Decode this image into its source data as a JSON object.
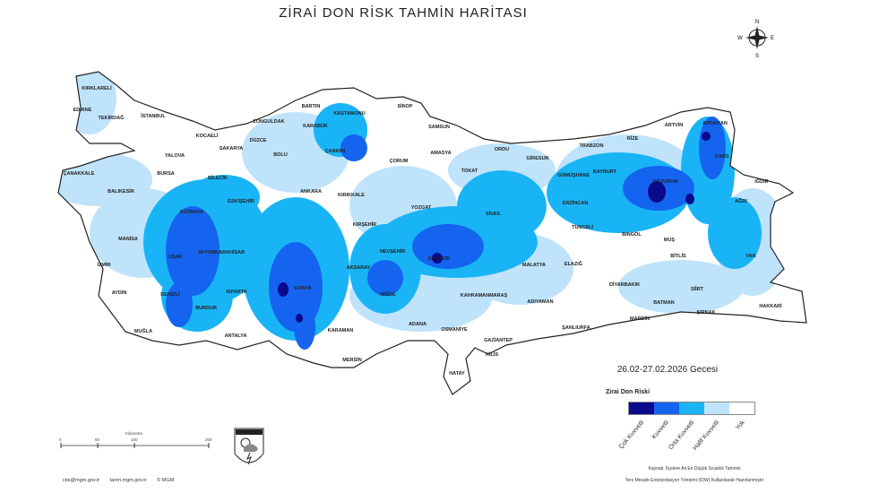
{
  "title": "ZİRAİ DON RİSK TAHMİN HARİTASI",
  "date_label": "26.02-27.02.2026 Gecesi",
  "legend": {
    "title": "Zirai Don Riski",
    "items": [
      {
        "label": "Çok Kuvvetli",
        "color": "#0a0a8c"
      },
      {
        "label": "Kuvvetli",
        "color": "#1464f0"
      },
      {
        "label": "Orta Kuvvetli",
        "color": "#19b4f5"
      },
      {
        "label": "Hafif Kuvvetli",
        "color": "#bfe3fa"
      },
      {
        "label": "Yok",
        "color": "#ffffff"
      }
    ]
  },
  "source_lines": [
    "Kaynak: İlçelere Ait En Düşük Sıcaklık Tahmini",
    "Ters Mesafe Enterpolasyon Yöntemi (IDW) Kullanılarak Hazırlanmıştır"
  ],
  "footer": {
    "email": "cbs@mgm.gov.tr",
    "web": "tarim.mgm.gov.tr",
    "copyright": "© MGM"
  },
  "scale": {
    "unit": "Kilometre",
    "ticks": [
      "0",
      "50",
      "100",
      "200"
    ]
  },
  "compass": {
    "n": "N",
    "s": "S",
    "e": "E",
    "w": "W",
    "icon": "compass-rose-icon"
  },
  "logo": {
    "text": "METEOROLOJİ",
    "icon": "meteoroloji-logo-icon"
  },
  "provinces": [
    "KIRKLARELİ",
    "EDİRNE",
    "TEKİRDAĞ",
    "İSTANBUL",
    "KOCAELİ",
    "ZONGULDAK",
    "BARTIN",
    "KASTAMONU",
    "SİNOP",
    "SAMSUN",
    "DÜZCE",
    "SAKARYA",
    "BOLU",
    "KARABÜK",
    "ÇANKIRI",
    "ÇORUM",
    "AMASYA",
    "TOKAT",
    "ORDU",
    "GİRESUN",
    "TRABZON",
    "RİZE",
    "ARTVİN",
    "ARDAHAN",
    "KARS",
    "IĞDIR",
    "BAYBURT",
    "GÜMÜŞHANE",
    "ERZURUM",
    "ERZİNCAN",
    "AĞRI",
    "TUNCELİ",
    "BİNGÖL",
    "MUŞ",
    "BİTLİS",
    "VAN",
    "ÇANAKKALE",
    "BALIKESİR",
    "BURSA",
    "BİLECİK",
    "ESKİŞEHİR",
    "ANKARA",
    "KIRIKKALE",
    "KIRŞEHİR",
    "YOZGAT",
    "SİVAS",
    "KÜTAHYA",
    "MANİSA",
    "UŞAK",
    "AFYONKARAHİSAR",
    "İZMİR",
    "AYDIN",
    "DENİZLİ",
    "BURDUR",
    "ISPARTA",
    "KONYA",
    "AKSARAY",
    "NEVŞEHİR",
    "KAYSERİ",
    "MALATYA",
    "ELAZIĞ",
    "DİYARBAKIR",
    "SİİRT",
    "BATMAN",
    "ŞIRNAK",
    "HAKKARİ",
    "MARDİN",
    "ŞANLIURFA",
    "ADIYAMAN",
    "KAHRAMANMARAŞ",
    "OSMANİYE",
    "GAZİANTEP",
    "KİLİS",
    "HATAY",
    "ADANA",
    "NİĞDE",
    "KARAMAN",
    "MERSİN",
    "ANTALYA",
    "MUĞLA",
    "YALOVA"
  ]
}
